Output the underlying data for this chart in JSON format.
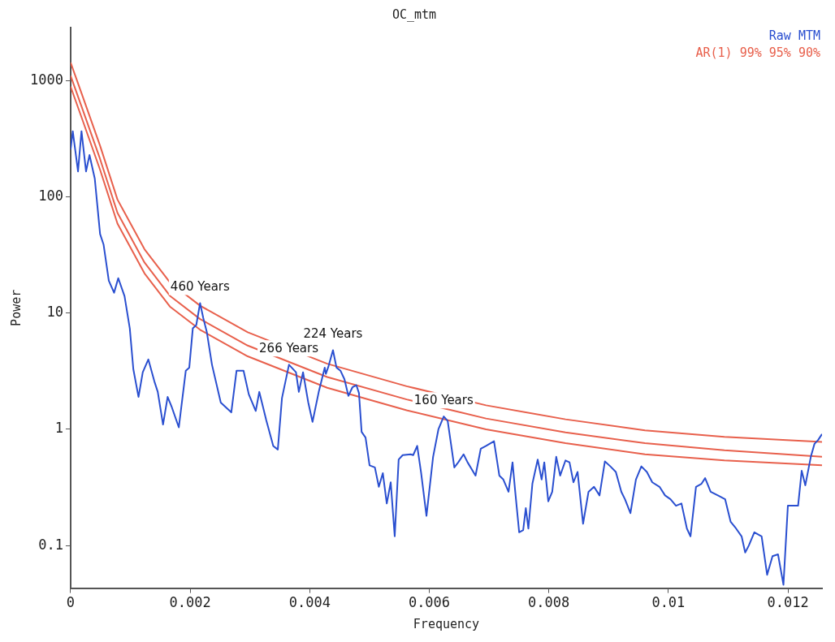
{
  "chart_data": {
    "type": "line",
    "title": "OC_mtm",
    "xlabel": "Frequency",
    "ylabel": "Power",
    "log": "y",
    "grid": false,
    "legend": "top right",
    "marker": "none",
    "line_style": "solid",
    "xlim": [
      0,
      0.01257
    ],
    "xticks": [
      0,
      0.002,
      0.004,
      0.006,
      0.008,
      0.01,
      0.012
    ],
    "ylim": [
      0.043,
      2870
    ],
    "yticks": [
      0.1,
      1,
      10,
      100,
      1000
    ],
    "series": [
      {
        "name": "Raw MTM",
        "color": "#2a4fd0",
        "x": [
          0,
          3.6e-05,
          0.000124,
          0.000182,
          0.000258,
          0.000316,
          0.000404,
          0.000493,
          0.000551,
          0.000639,
          0.000727,
          0.000797,
          0.000902,
          0.00099,
          0.001049,
          0.001136,
          0.001207,
          0.0013,
          0.0014,
          0.001458,
          0.001546,
          0.001623,
          0.001693,
          0.00181,
          0.001927,
          0.001985,
          0.002044,
          0.002102,
          0.002166,
          0.002219,
          0.002278,
          0.002365,
          0.002512,
          0.002688,
          0.002776,
          0.002893,
          0.002981,
          0.003097,
          0.003156,
          0.003273,
          0.00339,
          0.003466,
          0.003536,
          0.003653,
          0.00377,
          0.003818,
          0.003888,
          0.003976,
          0.004047,
          0.004151,
          0.004251,
          0.00427,
          0.004315,
          0.004389,
          0.004448,
          0.004514,
          0.004581,
          0.004647,
          0.004714,
          0.00478,
          0.004824,
          0.004868,
          0.004934,
          0.005001,
          0.00509,
          0.005156,
          0.005223,
          0.005289,
          0.005355,
          0.005422,
          0.005488,
          0.005555,
          0.005688,
          0.005731,
          0.005798,
          0.005864,
          0.005953,
          0.006064,
          0.006153,
          0.006242,
          0.006308,
          0.006375,
          0.006419,
          0.006485,
          0.006574,
          0.006641,
          0.006774,
          0.006861,
          0.00695,
          0.007083,
          0.007172,
          0.007239,
          0.007326,
          0.007393,
          0.007438,
          0.007504,
          0.007571,
          0.007615,
          0.007658,
          0.007725,
          0.007814,
          0.00788,
          0.007924,
          0.007991,
          0.008057,
          0.008124,
          0.00819,
          0.008279,
          0.008346,
          0.008412,
          0.008481,
          0.008573,
          0.008664,
          0.008756,
          0.008848,
          0.008938,
          0.00903,
          0.009121,
          0.009213,
          0.009274,
          0.009365,
          0.009457,
          0.009548,
          0.00964,
          0.009731,
          0.009852,
          0.009944,
          0.010036,
          0.010127,
          0.010219,
          0.01031,
          0.01037,
          0.010462,
          0.010554,
          0.010615,
          0.010707,
          0.010828,
          0.01095,
          0.011042,
          0.011133,
          0.011225,
          0.011285,
          0.011346,
          0.011438,
          0.01156,
          0.011652,
          0.011742,
          0.011834,
          0.011925,
          0.011999,
          0.012078,
          0.01217,
          0.01223,
          0.012291,
          0.012383,
          0.012444,
          0.012505,
          0.01257
        ],
        "values": [
          256,
          368,
          166,
          368,
          166,
          230,
          144,
          48,
          39,
          19,
          15,
          20,
          14,
          7.4,
          3.3,
          1.9,
          3.1,
          4.0,
          2.6,
          2.1,
          1.1,
          1.9,
          1.55,
          1.04,
          3.2,
          3.4,
          7.4,
          7.9,
          12.2,
          9.1,
          6.9,
          3.6,
          1.7,
          1.4,
          3.2,
          3.2,
          2.0,
          1.44,
          2.1,
          1.2,
          0.72,
          0.67,
          1.86,
          3.6,
          3.1,
          2.1,
          3.1,
          1.7,
          1.16,
          2.1,
          3.4,
          3.0,
          3.5,
          4.8,
          3.4,
          3.2,
          2.7,
          1.94,
          2.3,
          2.4,
          2.05,
          0.95,
          0.85,
          0.49,
          0.47,
          0.32,
          0.42,
          0.23,
          0.35,
          0.12,
          0.55,
          0.6,
          0.61,
          0.6,
          0.72,
          0.42,
          0.18,
          0.58,
          1.0,
          1.29,
          1.18,
          0.68,
          0.47,
          0.52,
          0.61,
          0.52,
          0.4,
          0.68,
          0.72,
          0.79,
          0.4,
          0.37,
          0.29,
          0.52,
          0.29,
          0.13,
          0.136,
          0.21,
          0.14,
          0.34,
          0.55,
          0.37,
          0.52,
          0.24,
          0.29,
          0.58,
          0.4,
          0.54,
          0.52,
          0.35,
          0.43,
          0.154,
          0.29,
          0.32,
          0.27,
          0.53,
          0.48,
          0.43,
          0.29,
          0.25,
          0.19,
          0.37,
          0.48,
          0.43,
          0.35,
          0.32,
          0.27,
          0.25,
          0.22,
          0.23,
          0.14,
          0.12,
          0.32,
          0.34,
          0.38,
          0.29,
          0.27,
          0.25,
          0.16,
          0.14,
          0.12,
          0.087,
          0.1,
          0.13,
          0.12,
          0.056,
          0.081,
          0.084,
          0.046,
          0.22,
          0.22,
          0.22,
          0.44,
          0.33,
          0.58,
          0.75,
          0.81,
          0.91
        ]
      },
      {
        "name": "AR(1) 99% 95% 90%",
        "color": "#e8604c",
        "x": [
          0,
          0.000173,
          0.000492,
          0.000784,
          0.001236,
          0.001661,
          0.002166,
          0.002963,
          0.004292,
          0.005621,
          0.00695,
          0.008279,
          0.009608,
          0.010937,
          0.01257
        ],
        "values": [
          1436,
          807,
          277,
          95,
          35.5,
          18.4,
          11.6,
          6.85,
          3.67,
          2.35,
          1.61,
          1.22,
          0.98,
          0.86,
          0.78
        ]
      },
      {
        "color": "#e8604c",
        "x": [
          0,
          0.000173,
          0.000492,
          0.000784,
          0.001236,
          0.001661,
          0.002166,
          0.002963,
          0.004292,
          0.005621,
          0.00695,
          0.008279,
          0.009608,
          0.010937,
          0.01257
        ],
        "values": [
          1104,
          621,
          213,
          73,
          27.3,
          14.1,
          8.9,
          5.26,
          2.82,
          1.81,
          1.24,
          0.94,
          0.76,
          0.66,
          0.58
        ]
      },
      {
        "color": "#e8604c",
        "x": [
          0,
          0.000173,
          0.000492,
          0.000784,
          0.001236,
          0.001661,
          0.002166,
          0.002963,
          0.004292,
          0.005621,
          0.00695,
          0.008279,
          0.009608,
          0.010937,
          0.01257
        ],
        "values": [
          891,
          501,
          172,
          59,
          22,
          11.4,
          7.2,
          4.25,
          2.28,
          1.46,
          1.0,
          0.76,
          0.61,
          0.54,
          0.49
        ]
      }
    ],
    "annotations": [
      {
        "text": "460 Years",
        "x": 0.002166,
        "y": 12.2
      },
      {
        "text": "266 Years",
        "x": 0.00365,
        "y": 3.6
      },
      {
        "text": "224 Years",
        "x": 0.004389,
        "y": 4.8
      },
      {
        "text": "160 Years",
        "x": 0.006242,
        "y": 1.29
      }
    ]
  }
}
